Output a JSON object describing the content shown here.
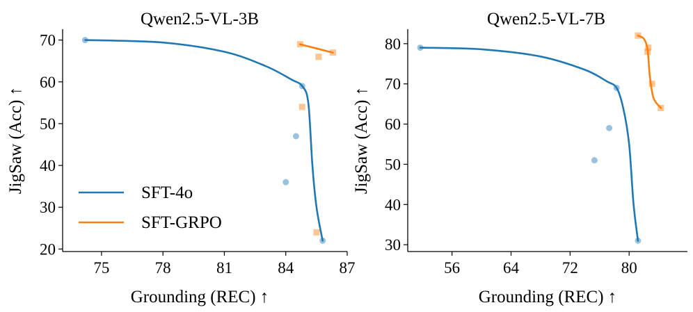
{
  "chart_data": [
    {
      "type": "scatter",
      "title": "Qwen2.5-VL-3B",
      "xlabel": "Grounding (REC) ↑",
      "ylabel": "JigSaw (Acc) ↑",
      "xlim": [
        73.1,
        87.0
      ],
      "ylim": [
        19.4,
        72.6
      ],
      "xticks": [
        75,
        78,
        81,
        84,
        87
      ],
      "yticks": [
        20,
        30,
        40,
        50,
        60,
        70
      ],
      "legend_position": "lower-left",
      "series": [
        {
          "name": "SFT-4o",
          "color": "#1f77b4",
          "marker": "circle",
          "points": [
            [
              74.2,
              70
            ],
            [
              84.8,
              59
            ],
            [
              84.5,
              47
            ],
            [
              84.0,
              36
            ],
            [
              85.8,
              22
            ]
          ],
          "curve": [
            [
              74.2,
              70
            ],
            [
              78,
              69.4
            ],
            [
              81,
              67.2
            ],
            [
              83,
              63.8
            ],
            [
              84.3,
              60.5
            ],
            [
              84.8,
              59
            ],
            [
              85.1,
              55
            ],
            [
              85.3,
              40
            ],
            [
              85.5,
              30
            ],
            [
              85.8,
              22
            ]
          ]
        },
        {
          "name": "SFT-GRPO",
          "color": "#ff7f0e",
          "marker": "square",
          "points": [
            [
              84.7,
              69
            ],
            [
              85.6,
              66
            ],
            [
              84.8,
              54
            ],
            [
              85.5,
              24
            ],
            [
              86.3,
              67
            ]
          ],
          "curve": [
            [
              84.7,
              69
            ],
            [
              86.3,
              67
            ]
          ]
        }
      ]
    },
    {
      "type": "scatter",
      "title": "Qwen2.5-VL-7B",
      "xlabel": "Grounding (REC) ↑",
      "ylabel": "JigSaw (Acc) ↑",
      "xlim": [
        50.0,
        87.9
      ],
      "ylim": [
        28.3,
        83.6
      ],
      "xticks": [
        56,
        64,
        72,
        80
      ],
      "yticks": [
        30,
        40,
        50,
        60,
        70,
        80
      ],
      "series": [
        {
          "name": "SFT-4o",
          "color": "#1f77b4",
          "marker": "circle",
          "points": [
            [
              51.7,
              79
            ],
            [
              78.3,
              69
            ],
            [
              77.3,
              59
            ],
            [
              75.3,
              51
            ],
            [
              81.2,
              31
            ]
          ],
          "curve": [
            [
              51.7,
              79
            ],
            [
              60,
              78.6
            ],
            [
              68,
              76.8
            ],
            [
              74,
              73.5
            ],
            [
              77,
              70.6
            ],
            [
              78.3,
              69
            ],
            [
              79.2,
              64
            ],
            [
              80,
              55
            ],
            [
              80.6,
              40
            ],
            [
              81.2,
              31
            ]
          ]
        },
        {
          "name": "SFT-GRPO",
          "color": "#ff7f0e",
          "marker": "square",
          "points": [
            [
              81.2,
              82
            ],
            [
              82.6,
              79
            ],
            [
              82.5,
              78
            ],
            [
              83.1,
              70
            ],
            [
              84.3,
              64
            ]
          ],
          "curve": [
            [
              81.2,
              82
            ],
            [
              82.0,
              81.2
            ],
            [
              82.5,
              78.5
            ],
            [
              82.8,
              72
            ],
            [
              83.3,
              66.5
            ],
            [
              84.3,
              64
            ]
          ]
        }
      ]
    }
  ]
}
